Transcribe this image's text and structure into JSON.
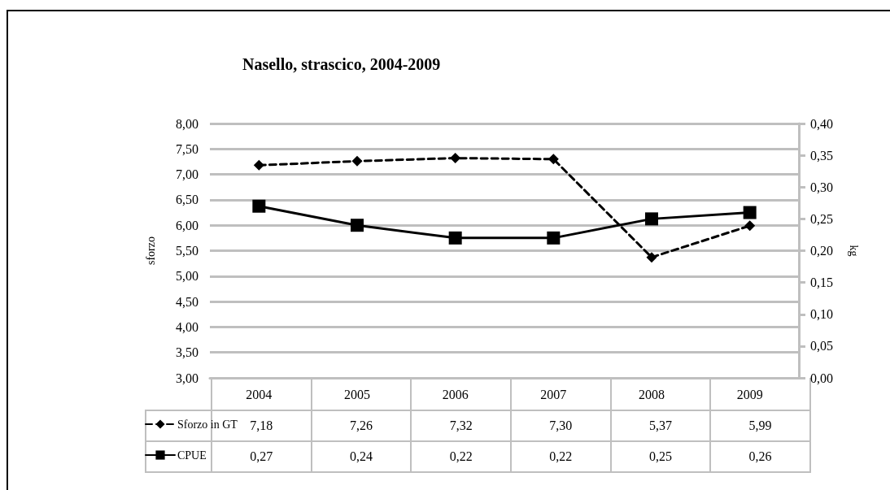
{
  "chart_data": {
    "type": "line",
    "title": "Nasello, strascico, 2004-2009",
    "ylabel": "sforzo",
    "y2label": "kg",
    "categories": [
      "2004",
      "2005",
      "2006",
      "2007",
      "2008",
      "2009"
    ],
    "series": [
      {
        "name": "Sforzo in GT",
        "color": "#000000",
        "values": [
          7.18,
          7.26,
          7.32,
          7.3,
          5.37,
          5.99
        ],
        "value_labels": [
          "7,18",
          "7,26",
          "7,32",
          "7,30",
          "5,37",
          "5,99"
        ],
        "marker": "diamond",
        "line_style": "dashed"
      },
      {
        "name": "CPUE",
        "color": "#000000",
        "values": [
          0.27,
          0.24,
          0.22,
          0.22,
          0.25,
          0.26
        ],
        "value_labels": [
          "0,27",
          "0,24",
          "0,22",
          "0,22",
          "0,25",
          "0,26"
        ],
        "marker": "square",
        "line_style": "solid",
        "axis": "y2"
      }
    ],
    "ylim": [
      3,
      8
    ],
    "yticks": [
      {
        "value": 3,
        "label": "3,00"
      },
      {
        "value": 3.5,
        "label": "3,50"
      },
      {
        "value": 4,
        "label": "4,00"
      },
      {
        "value": 4.5,
        "label": "4,50"
      },
      {
        "value": 5,
        "label": "5,00"
      },
      {
        "value": 5.5,
        "label": "5,50"
      },
      {
        "value": 6,
        "label": "6,00"
      },
      {
        "value": 6.5,
        "label": "6,50"
      },
      {
        "value": 7,
        "label": "7,00"
      },
      {
        "value": 7.5,
        "label": "7,50"
      },
      {
        "value": 8,
        "label": "8,00"
      }
    ],
    "y2lim": [
      0,
      0.4
    ],
    "y2ticks": [
      {
        "value": 0,
        "label": "0,00"
      },
      {
        "value": 0.05,
        "label": "0,05"
      },
      {
        "value": 0.1,
        "label": "0,10"
      },
      {
        "value": 0.15,
        "label": "0,15"
      },
      {
        "value": 0.2,
        "label": "0,20"
      },
      {
        "value": 0.25,
        "label": "0,25"
      },
      {
        "value": 0.3,
        "label": "0,30"
      },
      {
        "value": 0.35,
        "label": "0,35"
      },
      {
        "value": 0.4,
        "label": "0,40"
      }
    ],
    "grid": "y",
    "legend": "bottom"
  }
}
